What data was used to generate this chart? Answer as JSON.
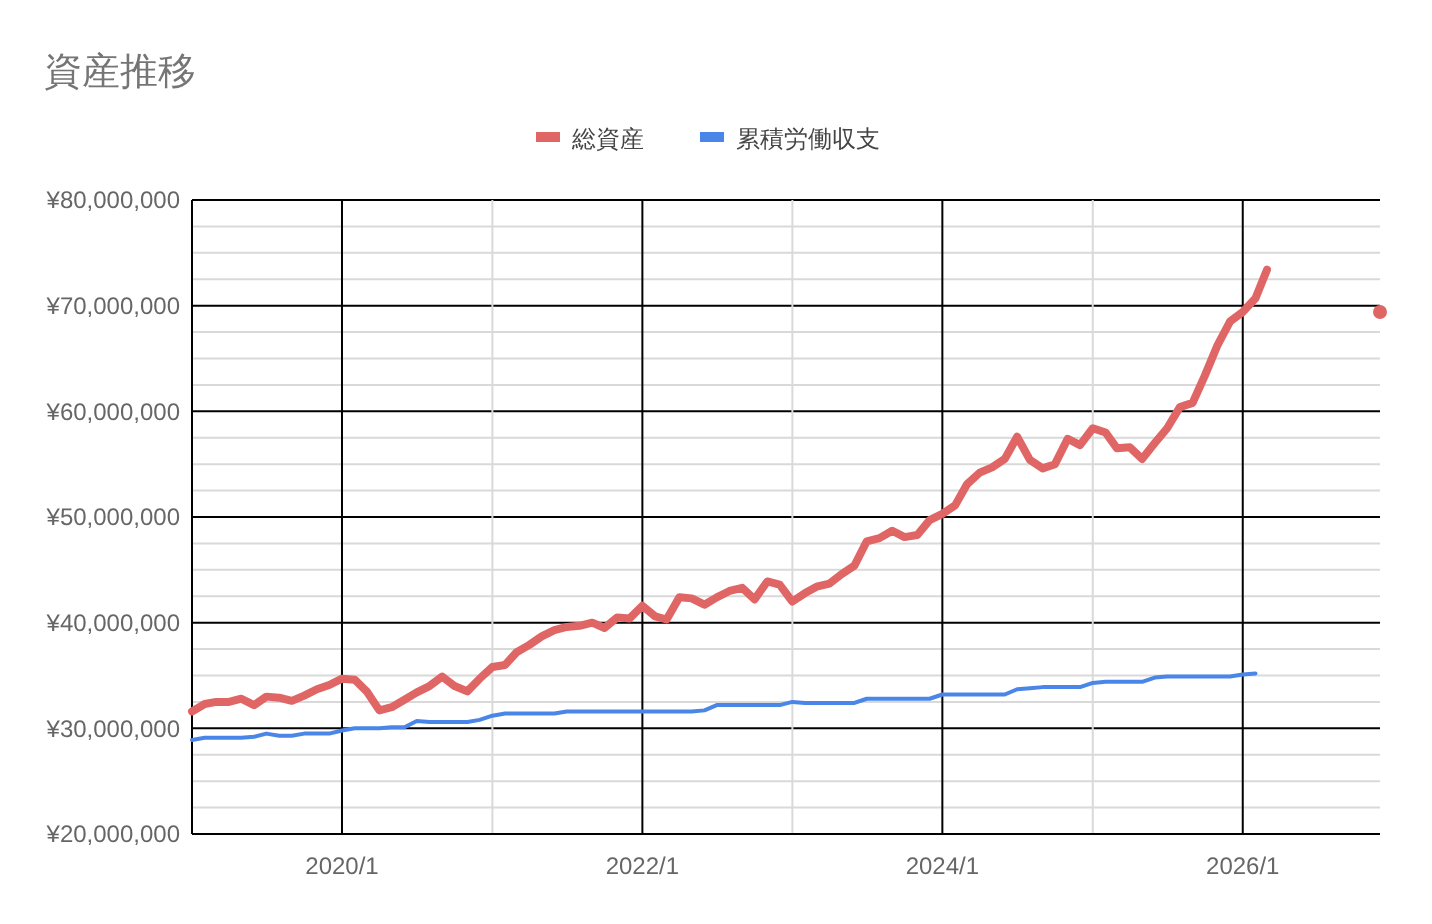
{
  "chart_data": {
    "type": "line",
    "title": "資産推移",
    "x": [
      "2019-01",
      "2019-02",
      "2019-03",
      "2019-04",
      "2019-05",
      "2019-06",
      "2019-07",
      "2019-08",
      "2019-09",
      "2019-10",
      "2019-11",
      "2019-12",
      "2020-01",
      "2020-02",
      "2020-03",
      "2020-04",
      "2020-05",
      "2020-06",
      "2020-07",
      "2020-08",
      "2020-09",
      "2020-10",
      "2020-11",
      "2020-12",
      "2021-01",
      "2021-02",
      "2021-03",
      "2021-04",
      "2021-05",
      "2021-06",
      "2021-07",
      "2021-08",
      "2021-09",
      "2021-10",
      "2021-11",
      "2021-12",
      "2022-01",
      "2022-02",
      "2022-03",
      "2022-04",
      "2022-05",
      "2022-06",
      "2022-07",
      "2022-08",
      "2022-09",
      "2022-10",
      "2022-11",
      "2022-12",
      "2023-01",
      "2023-02",
      "2023-03",
      "2023-04",
      "2023-05",
      "2023-06",
      "2023-07",
      "2023-08",
      "2023-09",
      "2023-10",
      "2023-11",
      "2023-12",
      "2024-01",
      "2024-02",
      "2024-03",
      "2024-04",
      "2024-05",
      "2024-06",
      "2024-07",
      "2024-08",
      "2024-09",
      "2024-10",
      "2024-11",
      "2024-12",
      "2025-01",
      "2025-02",
      "2025-03",
      "2025-04",
      "2025-05",
      "2025-06",
      "2025-07",
      "2025-08",
      "2025-09",
      "2025-10",
      "2025-11",
      "2025-12",
      "2026-01",
      "2026-02",
      "2026-03",
      "2026-04",
      "2026-05",
      "2026-06",
      "2026-07",
      "2026-08",
      "2026-09",
      "2026-10",
      "2026-11",
      "2026-12"
    ],
    "series": [
      {
        "name": "総資産",
        "color": "#e06666",
        "values": [
          31600000,
          32300000,
          32500000,
          32500000,
          32800000,
          32200000,
          33000000,
          32900000,
          32600000,
          33100000,
          33700000,
          34100000,
          34700000,
          34600000,
          33500000,
          31700000,
          32000000,
          32700000,
          33400000,
          34000000,
          34900000,
          34000000,
          33500000,
          34700000,
          35800000,
          36000000,
          37200000,
          37900000,
          38700000,
          39300000,
          39600000,
          39700000,
          40000000,
          39500000,
          40500000,
          40400000,
          41600000,
          40600000,
          40300000,
          42400000,
          42300000,
          41700000,
          42400000,
          43000000,
          43300000,
          42200000,
          43900000,
          43600000,
          42000000,
          42800000,
          43400000,
          43700000,
          44600000,
          45400000,
          47700000,
          48000000,
          48700000,
          48100000,
          48300000,
          49700000,
          50300000,
          51100000,
          53100000,
          54200000,
          54700000,
          55500000,
          57600000,
          55400000,
          54600000,
          55000000,
          57400000,
          56800000,
          58400000,
          58000000,
          56500000,
          56600000,
          55500000,
          57000000,
          58400000,
          60400000,
          60800000,
          63400000,
          66300000,
          68500000,
          69400000,
          70700000,
          73400000,
          null,
          null,
          null,
          null,
          null,
          null,
          null,
          null,
          69400000
        ]
      },
      {
        "name": "累積労働収支",
        "color": "#4a86e8",
        "values": [
          28900000,
          29100000,
          29100000,
          29100000,
          29100000,
          29200000,
          29500000,
          29300000,
          29300000,
          29500000,
          29500000,
          29500000,
          29800000,
          30000000,
          30000000,
          30000000,
          30100000,
          30100000,
          30700000,
          30600000,
          30600000,
          30600000,
          30600000,
          30800000,
          31200000,
          31400000,
          31400000,
          31400000,
          31400000,
          31400000,
          31600000,
          31600000,
          31600000,
          31600000,
          31600000,
          31600000,
          31600000,
          31600000,
          31600000,
          31600000,
          31600000,
          31700000,
          32200000,
          32200000,
          32200000,
          32200000,
          32200000,
          32200000,
          32500000,
          32400000,
          32400000,
          32400000,
          32400000,
          32400000,
          32800000,
          32800000,
          32800000,
          32800000,
          32800000,
          32800000,
          33200000,
          33200000,
          33200000,
          33200000,
          33200000,
          33200000,
          33700000,
          33800000,
          33900000,
          33900000,
          33900000,
          33900000,
          34300000,
          34400000,
          34400000,
          34400000,
          34400000,
          34800000,
          34900000,
          34900000,
          34900000,
          34900000,
          34900000,
          34900000,
          35100000,
          35200000,
          null,
          null,
          null,
          null,
          null,
          null,
          null,
          null,
          null,
          null
        ]
      }
    ],
    "xlim": [
      "2019-01",
      "2026-12"
    ],
    "xticks": [
      {
        "value": "2020-01",
        "label": "2020/1"
      },
      {
        "value": "2021-01",
        "label": null
      },
      {
        "value": "2022-01",
        "label": "2022/1"
      },
      {
        "value": "2023-01",
        "label": null
      },
      {
        "value": "2024-01",
        "label": "2024/1"
      },
      {
        "value": "2025-01",
        "label": null
      },
      {
        "value": "2026-01",
        "label": "2026/1"
      }
    ],
    "ylim": [
      20000000,
      80000000
    ],
    "yticks": [
      {
        "value": 20000000,
        "label": "¥20,000,000"
      },
      {
        "value": 22500000,
        "label": null
      },
      {
        "value": 25000000,
        "label": null
      },
      {
        "value": 27500000,
        "label": null
      },
      {
        "value": 30000000,
        "label": "¥30,000,000"
      },
      {
        "value": 32500000,
        "label": null
      },
      {
        "value": 35000000,
        "label": null
      },
      {
        "value": 37500000,
        "label": null
      },
      {
        "value": 40000000,
        "label": "¥40,000,000"
      },
      {
        "value": 42500000,
        "label": null
      },
      {
        "value": 45000000,
        "label": null
      },
      {
        "value": 47500000,
        "label": null
      },
      {
        "value": 50000000,
        "label": "¥50,000,000"
      },
      {
        "value": 52500000,
        "label": null
      },
      {
        "value": 55000000,
        "label": null
      },
      {
        "value": 57500000,
        "label": null
      },
      {
        "value": 60000000,
        "label": "¥60,000,000"
      },
      {
        "value": 62500000,
        "label": null
      },
      {
        "value": 65000000,
        "label": null
      },
      {
        "value": 67500000,
        "label": null
      },
      {
        "value": 70000000,
        "label": "¥70,000,000"
      },
      {
        "value": 72500000,
        "label": null
      },
      {
        "value": 75000000,
        "label": null
      },
      {
        "value": 77500000,
        "label": null
      },
      {
        "value": 80000000,
        "label": "¥80,000,000"
      }
    ],
    "grid": true,
    "legend": "top"
  }
}
